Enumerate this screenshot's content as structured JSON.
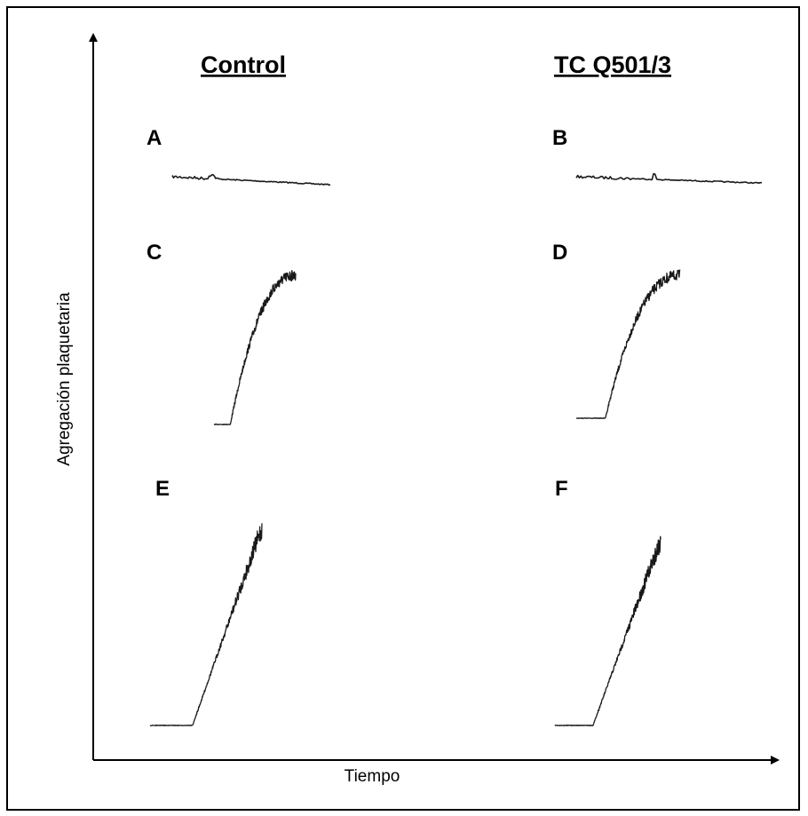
{
  "chart_data": {
    "type": "line",
    "xlabel": "Tiempo",
    "ylabel": "Agregación plaquetaria",
    "columns": [
      "Control",
      "TC Q501/3"
    ],
    "panels": [
      {
        "label": "A",
        "column": "Control",
        "kind": "flat"
      },
      {
        "label": "B",
        "column": "TC Q501/3",
        "kind": "flat"
      },
      {
        "label": "C",
        "column": "Control",
        "kind": "sigmoid"
      },
      {
        "label": "D",
        "column": "TC Q501/3",
        "kind": "sigmoid"
      },
      {
        "label": "E",
        "column": "Control",
        "kind": "ramp"
      },
      {
        "label": "F",
        "column": "TC Q501/3",
        "kind": "ramp"
      }
    ],
    "grid": false,
    "legend": "none"
  },
  "colors": {
    "trace": "#1a1a1a",
    "axis": "#000000",
    "background": "#ffffff"
  }
}
